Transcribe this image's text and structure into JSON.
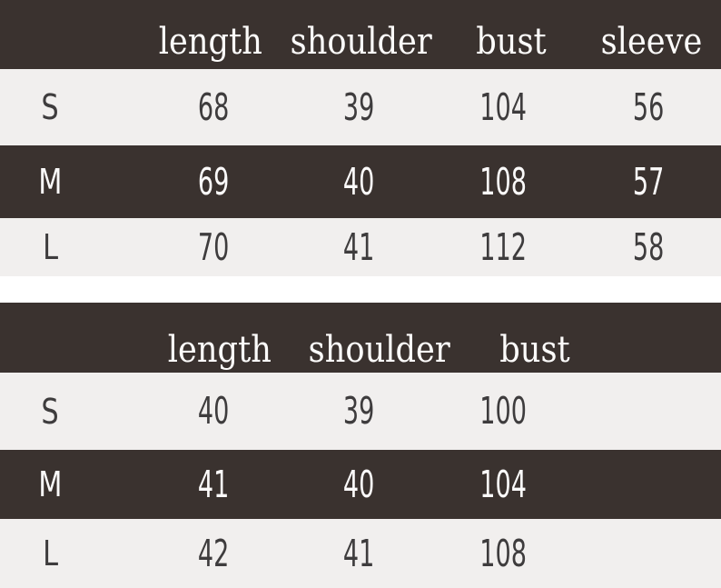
{
  "colors": {
    "header_and_alt_row_background": "#3a322f",
    "row_background": "#f1efee",
    "separator_background": "#ffffff",
    "text_on_dark": "#fbfafa",
    "text_on_light": "#3e3c3d"
  },
  "chart_data": [
    {
      "type": "table",
      "title": "",
      "columns": [
        "",
        "length",
        "shoulder",
        "bust",
        "sleeve"
      ],
      "rows": [
        [
          "S",
          68,
          39,
          104,
          56
        ],
        [
          "M",
          69,
          40,
          108,
          57
        ],
        [
          "L",
          70,
          41,
          112,
          58
        ]
      ],
      "layout": {
        "header_style": "dark-band",
        "row_striping": "light-dark-light"
      }
    },
    {
      "type": "table",
      "title": "",
      "columns": [
        "",
        "length",
        "shoulder",
        "bust"
      ],
      "rows": [
        [
          "S",
          40,
          39,
          100
        ],
        [
          "M",
          41,
          40,
          104
        ],
        [
          "L",
          42,
          41,
          108
        ]
      ],
      "layout": {
        "header_style": "dark-band",
        "row_striping": "light-dark-light"
      }
    }
  ]
}
